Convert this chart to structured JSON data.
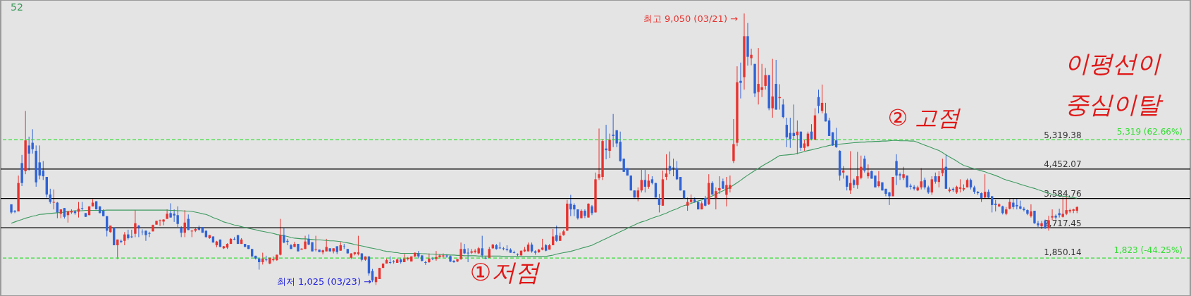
{
  "chart_data": {
    "type": "candlestick",
    "title": "52",
    "categories": [
      null,
      null,
      null,
      null,
      null,
      null,
      null,
      null,
      null,
      null,
      null,
      null,
      null,
      null,
      null,
      null,
      null,
      null,
      null,
      null,
      null,
      null,
      null,
      null,
      null,
      null,
      null,
      null,
      null,
      null,
      null,
      null,
      null,
      null,
      null,
      null,
      null,
      null,
      null,
      null,
      null,
      null,
      null,
      null,
      null,
      null,
      null,
      null,
      null,
      null,
      null,
      null,
      null,
      null,
      null,
      null,
      null,
      null,
      null,
      null,
      null,
      null,
      null,
      null,
      null,
      null,
      null,
      null,
      null,
      null,
      null,
      null,
      null,
      null,
      null,
      null,
      null,
      null,
      null,
      null,
      null,
      null,
      null,
      null,
      null,
      null,
      null,
      null,
      null,
      null,
      null,
      null,
      null,
      null,
      null,
      null,
      null,
      null,
      null,
      null,
      null,
      null,
      null,
      null,
      null,
      null,
      null,
      null,
      null,
      null,
      null,
      null,
      null,
      null,
      null,
      null,
      null,
      null,
      null,
      null,
      null,
      null,
      null,
      null,
      null,
      null,
      null,
      null,
      null,
      null,
      null,
      null,
      null,
      null,
      null,
      null,
      null,
      null,
      null,
      null,
      null,
      null,
      null,
      null,
      null,
      null,
      null,
      null,
      null,
      null,
      null,
      null,
      null,
      null,
      null,
      null,
      null,
      null,
      null,
      null,
      null,
      null,
      null,
      null,
      null,
      null,
      null,
      null,
      null,
      null,
      null,
      null,
      null,
      null,
      null,
      null,
      null,
      null,
      null,
      null,
      null,
      null,
      null,
      null,
      null,
      null,
      null,
      null,
      null,
      null,
      null,
      null,
      null,
      null,
      null,
      null,
      null,
      null,
      null,
      null,
      null,
      null,
      null,
      null,
      null,
      null,
      null,
      null,
      null,
      null,
      null,
      null,
      null,
      null,
      null,
      null,
      null,
      null,
      null,
      null,
      null,
      null,
      null,
      null,
      null,
      null,
      null,
      null,
      null,
      null,
      null,
      null,
      null,
      null,
      null,
      null,
      null,
      null,
      null,
      null,
      null,
      null,
      null,
      null,
      null,
      null,
      null,
      null,
      null,
      null,
      null,
      null,
      null,
      null,
      null,
      null,
      null,
      null,
      null,
      null,
      null,
      null,
      null,
      null,
      null,
      null,
      null,
      null,
      null,
      null,
      null,
      null,
      null,
      null,
      null,
      null,
      null,
      null,
      null,
      null,
      null,
      null,
      null,
      null,
      null,
      null,
      null,
      null,
      null,
      null,
      null,
      null,
      null,
      null,
      null,
      null,
      null,
      null,
      null,
      null,
      null,
      null
    ],
    "ohlc": [
      [
        3410,
        3410,
        3130,
        3170
      ],
      [
        3220,
        3240,
        3150,
        3190
      ],
      [
        3200,
        4260,
        3200,
        4040
      ],
      [
        4630,
        4870,
        3950,
        4040
      ],
      [
        4390,
        6170,
        4300,
        5300
      ],
      [
        5150,
        5410,
        4410,
        4910
      ],
      [
        5230,
        5630,
        4910,
        5040
      ],
      [
        4990,
        5150,
        3930,
        4060
      ],
      [
        4650,
        5150,
        4150,
        4260
      ],
      [
        4410,
        4690,
        4130,
        4240
      ],
      [
        4220,
        4220,
        3610,
        3700
      ],
      [
        3700,
        3870,
        3430,
        3480
      ],
      [
        3460,
        3850,
        3260,
        3480
      ],
      [
        3460,
        3480,
        3000,
        3170
      ],
      [
        3130,
        3260,
        3000,
        3260
      ],
      [
        3300,
        3300,
        2990,
        3040
      ],
      [
        3090,
        3220,
        2870,
        3200
      ],
      [
        3170,
        3260,
        3130,
        3220
      ],
      [
        3200,
        3240,
        3100,
        3150
      ],
      [
        3190,
        3480,
        3020,
        3280
      ],
      [
        3300,
        3480,
        3230,
        3280
      ],
      [
        3150,
        3150,
        3040,
        3040
      ],
      [
        3090,
        3350,
        3090,
        3350
      ],
      [
        3350,
        3560,
        3350,
        3460
      ],
      [
        3500,
        3500,
        3260,
        3260
      ],
      [
        3350,
        3350,
        3150,
        3150
      ],
      [
        3220,
        3260,
        3060,
        3060
      ],
      [
        3060,
        3060,
        2460,
        2630
      ],
      [
        2590,
        2780,
        2570,
        2780
      ],
      [
        2720,
        2720,
        2200,
        2200
      ],
      [
        2200,
        2370,
        1790,
        2370
      ],
      [
        2330,
        2370,
        2260,
        2300
      ],
      [
        2330,
        2590,
        2200,
        2520
      ],
      [
        2520,
        2660,
        2370,
        2410
      ],
      [
        2460,
        2660,
        2410,
        2440
      ],
      [
        2540,
        3240,
        2440,
        2850
      ],
      [
        2780,
        2800,
        2440,
        2720
      ],
      [
        2600,
        2670,
        2500,
        2590
      ],
      [
        2630,
        2630,
        2330,
        2500
      ],
      [
        2560,
        2600,
        2440,
        2540
      ],
      [
        2610,
        2810,
        2610,
        2800
      ],
      [
        2810,
        2920,
        2810,
        2920
      ],
      [
        2920,
        2960,
        2770,
        2940
      ],
      [
        2900,
        2970,
        2790,
        2960
      ],
      [
        2980,
        3260,
        2980,
        3130
      ],
      [
        3150,
        3440,
        3020,
        3020
      ],
      [
        3130,
        3260,
        2890,
        3080
      ],
      [
        3090,
        3350,
        2740,
        2830
      ],
      [
        2720,
        2760,
        2440,
        2570
      ],
      [
        2570,
        3240,
        2440,
        2870
      ],
      [
        2980,
        3110,
        2650,
        2650
      ],
      [
        2610,
        2650,
        2440,
        2630
      ],
      [
        2630,
        2720,
        2590,
        2680
      ],
      [
        2700,
        2780,
        2630,
        2660
      ],
      [
        2740,
        2740,
        2570,
        2570
      ],
      [
        2630,
        2630,
        2430,
        2440
      ],
      [
        2410,
        2500,
        2390,
        2500
      ],
      [
        2460,
        2460,
        2280,
        2280
      ],
      [
        2200,
        2330,
        2140,
        2310
      ],
      [
        2370,
        2370,
        2150,
        2150
      ],
      [
        2110,
        2180,
        2090,
        2170
      ],
      [
        2130,
        2260,
        2090,
        2240
      ],
      [
        2240,
        2410,
        2240,
        2390
      ],
      [
        2390,
        2440,
        2350,
        2370
      ],
      [
        2500,
        2500,
        2240,
        2240
      ],
      [
        2240,
        2410,
        2240,
        2370
      ],
      [
        2240,
        2240,
        2150,
        2150
      ],
      [
        2200,
        2200,
        2090,
        2090
      ],
      [
        2090,
        2090,
        1850,
        1870
      ],
      [
        1890,
        1890,
        1780,
        1810
      ],
      [
        1810,
        1810,
        1480,
        1700
      ],
      [
        1700,
        1980,
        1630,
        1810
      ],
      [
        1780,
        1890,
        1720,
        1760
      ],
      [
        1660,
        1830,
        1640,
        1830
      ],
      [
        1760,
        1870,
        1720,
        1790
      ],
      [
        1760,
        1920,
        1740,
        1920
      ],
      [
        1920,
        2980,
        1900,
        2500
      ],
      [
        2500,
        2700,
        2260,
        2280
      ],
      [
        2330,
        2390,
        2200,
        2300
      ],
      [
        2200,
        2240,
        2090,
        2090
      ],
      [
        2150,
        2300,
        2150,
        2240
      ],
      [
        2240,
        2240,
        2020,
        2020
      ],
      [
        2070,
        2110,
        2070,
        2100
      ],
      [
        2090,
        2480,
        2090,
        2310
      ],
      [
        2390,
        2520,
        2200,
        2220
      ],
      [
        2290,
        2290,
        2020,
        2020
      ],
      [
        2070,
        2480,
        2020,
        2090
      ],
      [
        2070,
        2070,
        2000,
        2000
      ],
      [
        1990,
        2070,
        1930,
        2050
      ],
      [
        2020,
        2390,
        2020,
        2150
      ],
      [
        2110,
        2110,
        2010,
        2020
      ],
      [
        2020,
        2110,
        1960,
        2110
      ],
      [
        2170,
        2170,
        1940,
        2000
      ],
      [
        2040,
        2290,
        2040,
        2200
      ],
      [
        2180,
        2240,
        2090,
        2170
      ],
      [
        2090,
        2090,
        1960,
        1960
      ],
      [
        1830,
        1960,
        1790,
        1960
      ],
      [
        1940,
        2000,
        1900,
        1990
      ],
      [
        1940,
        2480,
        1900,
        1990
      ],
      [
        1960,
        1960,
        1720,
        1770
      ],
      [
        1770,
        1870,
        1740,
        1870
      ],
      [
        1870,
        1870,
        1300,
        1370
      ],
      [
        1440,
        1500,
        1110,
        1160
      ],
      [
        1110,
        1280,
        1025,
        1260
      ],
      [
        1200,
        1530,
        1200,
        1530
      ],
      [
        1530,
        1660,
        1530,
        1660
      ],
      [
        1660,
        1810,
        1660,
        1760
      ],
      [
        1700,
        1870,
        1640,
        1680
      ],
      [
        1720,
        1760,
        1660,
        1700
      ],
      [
        1680,
        1810,
        1680,
        1780
      ],
      [
        1780,
        1810,
        1660,
        1700
      ],
      [
        1700,
        1940,
        1700,
        1810
      ],
      [
        1790,
        1850,
        1750,
        1830
      ],
      [
        1720,
        1870,
        1720,
        1870
      ],
      [
        1870,
        1980,
        1850,
        1980
      ],
      [
        1960,
        2030,
        1810,
        1870
      ],
      [
        1900,
        1900,
        1720,
        1740
      ],
      [
        1700,
        1740,
        1620,
        1680
      ],
      [
        1700,
        1960,
        1680,
        1810
      ],
      [
        1810,
        1850,
        1760,
        1790
      ],
      [
        1790,
        2030,
        1740,
        1850
      ],
      [
        1850,
        1940,
        1830,
        1900
      ],
      [
        1870,
        1960,
        1830,
        1900
      ],
      [
        1900,
        1940,
        1830,
        1870
      ],
      [
        1880,
        1900,
        1700,
        1720
      ],
      [
        1740,
        1760,
        1680,
        1700
      ],
      [
        1720,
        1790,
        1700,
        1790
      ],
      [
        1790,
        2280,
        1770,
        2090
      ],
      [
        2090,
        2240,
        1940,
        1960
      ],
      [
        1980,
        2110,
        1700,
        1960
      ],
      [
        1980,
        2090,
        1940,
        2020
      ],
      [
        2000,
        2090,
        1960,
        2040
      ],
      [
        1960,
        2150,
        1940,
        2110
      ],
      [
        2110,
        2480,
        1830,
        1900
      ],
      [
        1830,
        1870,
        1790,
        1810
      ],
      [
        1830,
        2150,
        1830,
        2090
      ],
      [
        2110,
        2240,
        2090,
        2220
      ],
      [
        2200,
        2240,
        2070,
        2090
      ],
      [
        2130,
        2290,
        2090,
        2110
      ],
      [
        2110,
        2150,
        2050,
        2090
      ],
      [
        2090,
        2200,
        2020,
        2060
      ],
      [
        2070,
        2110,
        1980,
        1980
      ],
      [
        1990,
        2040,
        1960,
        1970
      ],
      [
        1940,
        1960,
        1870,
        1920
      ],
      [
        1900,
        2040,
        1900,
        2040
      ],
      [
        2020,
        2150,
        2000,
        2070
      ],
      [
        2020,
        2280,
        2020,
        2220
      ],
      [
        2220,
        2280,
        1980,
        2020
      ],
      [
        2020,
        2050,
        1920,
        1980
      ],
      [
        1990,
        2090,
        1980,
        2070
      ],
      [
        2070,
        2390,
        2050,
        2130
      ],
      [
        2200,
        2240,
        2020,
        2040
      ],
      [
        2070,
        2240,
        2070,
        2200
      ],
      [
        2200,
        2680,
        2200,
        2460
      ],
      [
        2500,
        2780,
        2300,
        2330
      ],
      [
        2330,
        2570,
        2330,
        2480
      ],
      [
        2500,
        2660,
        2480,
        2610
      ],
      [
        2630,
        3540,
        2630,
        3430
      ],
      [
        3430,
        3690,
        3060,
        3260
      ],
      [
        3390,
        3440,
        3060,
        3260
      ],
      [
        3260,
        3260,
        2960,
        3000
      ],
      [
        3000,
        3260,
        3000,
        3220
      ],
      [
        3220,
        3260,
        3000,
        3070
      ],
      [
        3020,
        3440,
        3020,
        3430
      ],
      [
        3350,
        3390,
        3090,
        3150
      ],
      [
        3170,
        4350,
        3170,
        4150
      ],
      [
        4190,
        5650,
        4130,
        4300
      ],
      [
        4220,
        5340,
        4130,
        5280
      ],
      [
        5060,
        5760,
        4740,
        5010
      ],
      [
        4990,
        5500,
        4780,
        5320
      ],
      [
        5470,
        6080,
        5100,
        5430
      ],
      [
        5600,
        5600,
        5100,
        5210
      ],
      [
        5260,
        5560,
        4670,
        4690
      ],
      [
        4760,
        4760,
        4370,
        4370
      ],
      [
        4480,
        4480,
        4260,
        4260
      ],
      [
        4260,
        4260,
        3820,
        3820
      ],
      [
        3820,
        3820,
        3610,
        3610
      ],
      [
        3610,
        3910,
        3500,
        3820
      ],
      [
        3820,
        4430,
        3760,
        4130
      ],
      [
        4130,
        4430,
        3760,
        3930
      ],
      [
        3930,
        4300,
        3870,
        4110
      ],
      [
        4150,
        4240,
        4000,
        4040
      ],
      [
        4040,
        4040,
        3610,
        3610
      ],
      [
        3590,
        3720,
        3170,
        3390
      ],
      [
        3370,
        4410,
        3370,
        4150
      ],
      [
        4220,
        4890,
        4130,
        4320
      ],
      [
        4540,
        4970,
        4300,
        4410
      ],
      [
        4500,
        4760,
        4240,
        4480
      ],
      [
        4480,
        4690,
        4130,
        4150
      ],
      [
        4220,
        4220,
        3820,
        3820
      ],
      [
        3820,
        3820,
        3590,
        3590
      ],
      [
        3370,
        3610,
        3220,
        3480
      ],
      [
        3480,
        3700,
        3440,
        3550
      ],
      [
        3550,
        3610,
        3460,
        3480
      ],
      [
        3480,
        3480,
        3260,
        3260
      ],
      [
        3260,
        3500,
        3260,
        3440
      ],
      [
        3590,
        3660,
        3350,
        3370
      ],
      [
        3410,
        4300,
        3390,
        4040
      ],
      [
        4040,
        4090,
        3690,
        3700
      ],
      [
        3590,
        3910,
        3260,
        3800
      ],
      [
        3820,
        4240,
        3720,
        3890
      ],
      [
        4090,
        4170,
        3870,
        3870
      ],
      [
        3690,
        4220,
        3350,
        3980
      ],
      [
        3870,
        4260,
        3760,
        3980
      ],
      [
        4690,
        5930,
        4630,
        5190
      ],
      [
        5230,
        7490,
        5130,
        7020
      ],
      [
        7060,
        7600,
        6540,
        7000
      ],
      [
        7170,
        9050,
        6800,
        8380
      ],
      [
        8380,
        8770,
        7510,
        7770
      ],
      [
        7730,
        8010,
        7520,
        7830
      ],
      [
        7560,
        7560,
        6580,
        6690
      ],
      [
        6730,
        8030,
        6360,
        6970
      ],
      [
        6790,
        7560,
        6580,
        6870
      ],
      [
        6910,
        7440,
        6800,
        7230
      ],
      [
        7230,
        7230,
        6190,
        6250
      ],
      [
        6250,
        7710,
        5970,
        6600
      ],
      [
        6970,
        7680,
        6210,
        6210
      ],
      [
        6550,
        6960,
        6210,
        6580
      ],
      [
        6360,
        6520,
        5950,
        5990
      ],
      [
        5760,
        5970,
        5100,
        5390
      ],
      [
        5520,
        5970,
        5080,
        5340
      ],
      [
        5520,
        6360,
        5320,
        5430
      ],
      [
        5450,
        5890,
        4890,
        5560
      ],
      [
        5560,
        5560,
        4990,
        5080
      ],
      [
        5080,
        5320,
        4990,
        5210
      ],
      [
        5130,
        5560,
        5100,
        5500
      ],
      [
        5560,
        5780,
        5300,
        5340
      ],
      [
        5320,
        6250,
        5320,
        6040
      ],
      [
        6580,
        6800,
        6100,
        6320
      ],
      [
        6170,
        6950,
        6100,
        6410
      ],
      [
        6100,
        6410,
        5860,
        5860
      ],
      [
        5890,
        5970,
        5430,
        5430
      ],
      [
        5540,
        5540,
        5140,
        5150
      ],
      [
        5300,
        5670,
        5080,
        5100
      ],
      [
        4990,
        5010,
        4110,
        4260
      ],
      [
        4350,
        4540,
        4170,
        4410
      ],
      [
        4260,
        4260,
        3820,
        3930
      ],
      [
        3820,
        4980,
        3720,
        4040
      ],
      [
        4130,
        4170,
        3890,
        3980
      ],
      [
        3980,
        4960,
        3870,
        4240
      ],
      [
        4190,
        4850,
        4150,
        4520
      ],
      [
        4760,
        4850,
        4350,
        4410
      ],
      [
        4240,
        4590,
        4170,
        4350
      ],
      [
        4390,
        4410,
        4170,
        4170
      ],
      [
        4260,
        4260,
        3910,
        3910
      ],
      [
        3950,
        4390,
        3910,
        4090
      ],
      [
        4060,
        4060,
        3820,
        3820
      ],
      [
        3870,
        3870,
        3650,
        3720
      ],
      [
        3760,
        3780,
        3390,
        3650
      ],
      [
        3650,
        4220,
        3650,
        4220
      ],
      [
        4690,
        4890,
        3980,
        4260
      ],
      [
        4300,
        4350,
        4130,
        4260
      ],
      [
        4190,
        4520,
        4130,
        4300
      ],
      [
        4260,
        4260,
        3910,
        3910
      ],
      [
        3960,
        4020,
        3850,
        3930
      ],
      [
        3930,
        3980,
        3820,
        3870
      ],
      [
        3820,
        3960,
        3800,
        3910
      ],
      [
        3910,
        4480,
        3850,
        4090
      ],
      [
        4130,
        4200,
        3850,
        3910
      ],
      [
        3910,
        3960,
        3720,
        3760
      ],
      [
        3760,
        4240,
        3690,
        4150
      ],
      [
        4240,
        4350,
        4020,
        4080
      ],
      [
        4070,
        4390,
        3910,
        4240
      ],
      [
        4330,
        4760,
        4240,
        4480
      ],
      [
        4520,
        4890,
        3870,
        3870
      ],
      [
        3800,
        3910,
        3760,
        3850
      ],
      [
        3870,
        3910,
        3780,
        3830
      ],
      [
        3760,
        3960,
        3720,
        3930
      ],
      [
        3870,
        4150,
        3760,
        3910
      ],
      [
        3850,
        4000,
        3800,
        3890
      ],
      [
        3910,
        4170,
        3910,
        4130
      ],
      [
        4130,
        4170,
        3850,
        3910
      ],
      [
        3910,
        3960,
        3720,
        3780
      ],
      [
        3780,
        3800,
        3690,
        3740
      ],
      [
        3740,
        3760,
        3480,
        3590
      ],
      [
        3610,
        4300,
        3590,
        3780
      ],
      [
        3780,
        3850,
        3590,
        3610
      ],
      [
        3650,
        3650,
        3170,
        3390
      ],
      [
        3430,
        3540,
        3200,
        3390
      ],
      [
        3350,
        3440,
        3330,
        3410
      ],
      [
        3350,
        3370,
        3110,
        3150
      ],
      [
        3130,
        3330,
        3090,
        3260
      ],
      [
        3280,
        3570,
        3260,
        3480
      ],
      [
        3460,
        3590,
        3260,
        3330
      ],
      [
        3390,
        3570,
        3260,
        3350
      ],
      [
        3350,
        3520,
        3260,
        3280
      ],
      [
        3280,
        3330,
        3200,
        3240
      ],
      [
        3240,
        3260,
        3090,
        3130
      ],
      [
        3060,
        3410,
        3020,
        3200
      ],
      [
        3220,
        3220,
        2830,
        2850
      ],
      [
        2850,
        2920,
        2740,
        2790
      ],
      [
        2760,
        2920,
        2680,
        2850
      ],
      [
        2920,
        2960,
        2680,
        2700
      ],
      [
        2700,
        3070,
        2630,
        2940
      ],
      [
        3020,
        3260,
        2940,
        3060
      ],
      [
        3070,
        3110,
        2960,
        3020
      ],
      [
        3150,
        3280,
        3020,
        3090
      ],
      [
        3040,
        3610,
        3020,
        3130
      ],
      [
        3130,
        3630,
        3090,
        3240
      ],
      [
        3200,
        3280,
        3150,
        3240
      ],
      [
        3220,
        3280,
        3150,
        3260
      ],
      [
        3220,
        3350,
        3150,
        3330
      ]
    ],
    "colors": [
      "#2f63d6",
      "#2f63d6",
      "#e8322e",
      "#2f63d6",
      "#e8322e",
      "#2f63d6",
      "#2f63d6",
      "#2f63d6",
      "#2f63d6",
      "#2f63d6",
      "#2f63d6",
      "#2f63d6",
      "#e8322e",
      "#2f63d6",
      "#e8322e",
      "#2f63d6",
      "#e8322e",
      "#e8322e",
      "#2f63d6",
      "#e8322e",
      "#2f63d6",
      "#2f63d6",
      "#e8322e",
      "#e8322e",
      "#2f63d6",
      "#2f63d6",
      "#2f63d6",
      "#2f63d6",
      "#e8322e",
      "#2f63d6",
      "#e8322e",
      "#2f63d6",
      "#e8322e",
      "#2f63d6",
      "#2f63d6",
      "#e8322e",
      "#2f63d6",
      "#2f63d6",
      "#2f63d6",
      "#2f63d6",
      "#e8322e",
      "#e8322e",
      "#e8322e",
      "#e8322e",
      "#e8322e",
      "#2f63d6",
      "#2f63d6",
      "#2f63d6",
      "#2f63d6",
      "#e8322e",
      "#2f63d6",
      "#e8322e",
      "#e8322e",
      "#2f63d6",
      "#2f63d6",
      "#2f63d6",
      "#e8322e",
      "#2f63d6",
      "#e8322e",
      "#2f63d6",
      "#e8322e",
      "#e8322e",
      "#e8322e",
      "#2f63d6",
      "#2f63d6",
      "#e8322e",
      "#2f63d6",
      "#2f63d6",
      "#2f63d6",
      "#2f63d6",
      "#2f63d6",
      "#e8322e",
      "#2f63d6",
      "#e8322e",
      "#e8322e",
      "#e8322e",
      "#e8322e",
      "#2f63d6",
      "#2f63d6",
      "#2f63d6",
      "#e8322e",
      "#2f63d6",
      "#e8322e",
      "#e8322e",
      "#2f63d6",
      "#2f63d6",
      "#e8322e",
      "#2f63d6",
      "#e8322e",
      "#e8322e",
      "#2f63d6",
      "#e8322e",
      "#2f63d6",
      "#e8322e",
      "#2f63d6",
      "#2f63d6",
      "#e8322e",
      "#e8322e",
      "#e8322e",
      "#2f63d6",
      "#e8322e",
      "#2f63d6",
      "#2f63d6",
      "#e8322e",
      "#e8322e",
      "#e8322e",
      "#e8322e",
      "#2f63d6",
      "#2f63d6",
      "#e8322e",
      "#2f63d6",
      "#e8322e",
      "#e8322e",
      "#e8322e",
      "#e8322e",
      "#2f63d6",
      "#2f63d6",
      "#2f63d6",
      "#e8322e",
      "#2f63d6",
      "#e8322e",
      "#e8322e",
      "#e8322e",
      "#2f63d6",
      "#2f63d6",
      "#2f63d6",
      "#e8322e",
      "#e8322e",
      "#2f63d6",
      "#2f63d6",
      "#e8322e",
      "#e8322e",
      "#e8322e",
      "#2f63d6",
      "#2f63d6",
      "#e8322e",
      "#e8322e",
      "#2f63d6",
      "#2f63d6",
      "#2f63d6",
      "#2f63d6",
      "#2f63d6",
      "#2f63d6",
      "#2f63d6",
      "#e8322e",
      "#e8322e",
      "#e8322e",
      "#2f63d6",
      "#2f63d6",
      "#e8322e",
      "#e8322e",
      "#2f63d6",
      "#e8322e",
      "#e8322e",
      "#2f63d6",
      "#e8322e",
      "#e8322e",
      "#e8322e",
      "#2f63d6",
      "#2f63d6",
      "#2f63d6",
      "#e8322e",
      "#2f63d6",
      "#e8322e",
      "#2f63d6",
      "#e8322e",
      "#e8322e",
      "#e8322e",
      "#2f63d6",
      "#e8322e",
      "#2f63d6",
      "#2f63d6",
      "#2f63d6",
      "#2f63d6",
      "#2f63d6",
      "#2f63d6",
      "#2f63d6",
      "#e8322e",
      "#e8322e",
      "#2f63d6",
      "#e8322e",
      "#2f63d6",
      "#2f63d6",
      "#2f63d6",
      "#e8322e",
      "#e8322e",
      "#2f63d6",
      "#2f63d6",
      "#2f63d6",
      "#2f63d6",
      "#2f63d6",
      "#e8322e",
      "#e8322e",
      "#2f63d6",
      "#2f63d6",
      "#e8322e",
      "#2f63d6",
      "#e8322e",
      "#2f63d6",
      "#e8322e",
      "#e8322e",
      "#2f63d6",
      "#e8322e",
      "#e8322e",
      "#e8322e",
      "#e8322e",
      "#2f63d6",
      "#e8322e",
      "#2f63d6",
      "#e8322e",
      "#2f63d6",
      "#e8322e",
      "#e8322e",
      "#e8322e",
      "#2f63d6",
      "#e8322e",
      "#2f63d6",
      "#e8322e",
      "#2f63d6",
      "#2f63d6",
      "#2f63d6",
      "#2f63d6",
      "#e8322e",
      "#2f63d6",
      "#e8322e",
      "#e8322e",
      "#2f63d6",
      "#e8322e",
      "#2f63d6",
      "#e8322e",
      "#2f63d6",
      "#2f63d6",
      "#2f63d6",
      "#2f63d6",
      "#2f63d6",
      "#e8322e",
      "#2f63d6",
      "#e8322e",
      "#2f63d6",
      "#e8322e",
      "#e8322e",
      "#2f63d6",
      "#e8322e",
      "#2f63d6",
      "#2f63d6",
      "#e8322e",
      "#2f63d6",
      "#2f63d6",
      "#2f63d6",
      "#e8322e",
      "#2f63d6",
      "#2f63d6",
      "#e8322e",
      "#2f63d6",
      "#2f63d6",
      "#2f63d6",
      "#e8322e",
      "#e8322e",
      "#2f63d6",
      "#2f63d6",
      "#e8322e",
      "#2f63d6",
      "#e8322e",
      "#e8322e",
      "#2f63d6",
      "#e8322e",
      "#2f63d6",
      "#e8322e",
      "#e8322e",
      "#e8322e",
      "#e8322e",
      "#2f63d6",
      "#2f63d6",
      "#2f63d6",
      "#2f63d6",
      "#e8322e",
      "#2f63d6",
      "#2f63d6",
      "#2f63d6",
      "#e8322e",
      "#2f63d6",
      "#e8322e",
      "#e8322e",
      "#2f63d6",
      "#2f63d6",
      "#2f63d6",
      "#2f63d6",
      "#2f63d6",
      "#e8322e",
      "#2f63d6",
      "#2f63d6",
      "#e8322e",
      "#2f63d6",
      "#e8322e",
      "#e8322e",
      "#2f63d6",
      "#2f63d6",
      "#e8322e",
      "#e8322e",
      "#e8322e",
      "#e8322e",
      "#e8322e"
    ],
    "series": [
      {
        "type": "line",
        "color": "#3c9a5f",
        "values": [
          2850,
          2890,
          2930,
          2960,
          3000,
          3030,
          3060,
          3080,
          3110,
          3120,
          3130,
          3140,
          3150,
          3160,
          3170,
          3180,
          3200,
          3210,
          3220,
          3220,
          3220,
          3230,
          3230,
          3230,
          3230,
          3230,
          3230,
          3240,
          3240,
          3240,
          3240,
          3240,
          3240,
          3240,
          3240,
          3240,
          3240,
          3240,
          3240,
          3240,
          3240,
          3240,
          3240,
          3240,
          3240,
          3230,
          3230,
          3220,
          3220,
          3210,
          3210,
          3200,
          3180,
          3160,
          3130,
          3110,
          3070,
          3020,
          2980,
          2940,
          2890,
          2860,
          2830,
          2800,
          2780,
          2750,
          2720,
          2700,
          2680,
          2660,
          2630,
          2610,
          2590,
          2570,
          2550,
          2520,
          2500,
          2480,
          2460,
          2430,
          2410,
          2400,
          2390,
          2390,
          2380,
          2370,
          2360,
          2360,
          2350,
          2340,
          2330,
          2330,
          2320,
          2310,
          2290,
          2270,
          2250,
          2220,
          2200,
          2180,
          2160,
          2130,
          2110,
          2090,
          2070,
          2040,
          2020,
          2010,
          1990,
          1980,
          1960,
          1960,
          1960,
          1960,
          1960,
          1960,
          1950,
          1950,
          1940,
          1940,
          1930,
          1930,
          1920,
          1920,
          1910,
          1910,
          1900,
          1900,
          1890,
          1890,
          1890,
          1890,
          1880,
          1880,
          1880,
          1880,
          1880,
          1880,
          1880,
          1870,
          1870,
          1870,
          1870,
          1870,
          1870,
          1870,
          1870,
          1870,
          1870,
          1870,
          1870,
          1870,
          1890,
          1910,
          1940,
          1960,
          1980,
          2000,
          2020,
          2050,
          2080,
          2110,
          2140,
          2170,
          2200,
          2250,
          2300,
          2350,
          2400,
          2450,
          2500,
          2550,
          2600,
          2650,
          2700,
          2750,
          2800,
          2850,
          2890,
          2920,
          2960,
          3000,
          3040,
          3070,
          3110,
          3150,
          3200,
          3240,
          3280,
          3330,
          3370,
          3400,
          3440,
          3470,
          3510,
          3540,
          3580,
          3610,
          3660,
          3710,
          3760,
          3810,
          3860,
          3910,
          3980,
          4050,
          4120,
          4200,
          4270,
          4340,
          4410,
          4470,
          4540,
          4600,
          4660,
          4720,
          4790,
          4850,
          4860,
          4870,
          4880,
          4890,
          4920,
          4940,
          4970,
          5000,
          5020,
          5050,
          5070,
          5100,
          5120,
          5150,
          5170,
          5180,
          5190,
          5200,
          5210,
          5220,
          5230,
          5240,
          5250,
          5250,
          5260,
          5260,
          5270,
          5270,
          5280,
          5280,
          5290,
          5300,
          5300,
          5290,
          5290,
          5290,
          5280,
          5280,
          5240,
          5200,
          5160,
          5120,
          5080,
          5040,
          5000,
          4940,
          4870,
          4810,
          4750,
          4690,
          4620,
          4560,
          4530,
          4490,
          4460,
          4430,
          4400,
          4370,
          4330,
          4300,
          4260,
          4220,
          4170,
          4130,
          4100,
          4070,
          4040,
          4000,
          3970,
          3940,
          3910,
          3880,
          3840,
          3810,
          3770,
          3740,
          3700,
          3680,
          3670,
          3650,
          3640,
          3620,
          3610,
          3590
        ]
      }
    ],
    "ylim": [
      700,
      9450
    ],
    "yticks": [
      {
        "value": 5319.38,
        "label": "5,319.38"
      },
      {
        "value": 4452.07,
        "label": "4,452.07"
      },
      {
        "value": 3584.76,
        "label": "3,584.76"
      },
      {
        "value": 2717.45,
        "label": "2,717.45"
      },
      {
        "value": 1850.14,
        "label": "1,850.14"
      }
    ],
    "ref_lines": [
      {
        "axis": "y",
        "value": 4452.07,
        "color": "#000000"
      },
      {
        "axis": "y",
        "value": 3584.76,
        "color": "#000000"
      },
      {
        "axis": "y",
        "value": 2717.45,
        "color": "#000000"
      },
      {
        "axis": "y",
        "value": 5319,
        "label": "5,319 (62.66%)",
        "color": "#33dd33",
        "line_style": "dashed"
      },
      {
        "axis": "y",
        "value": 1823,
        "label": "1,823 (-44.25%)",
        "color": "#33dd33",
        "line_style": "dashed"
      }
    ],
    "annotations": [
      "최고 9,050 (03/21) →",
      "최저 1,025 (03/23) →",
      "①저점",
      "② 고점",
      "이평선이 중심이탈"
    ]
  }
}
